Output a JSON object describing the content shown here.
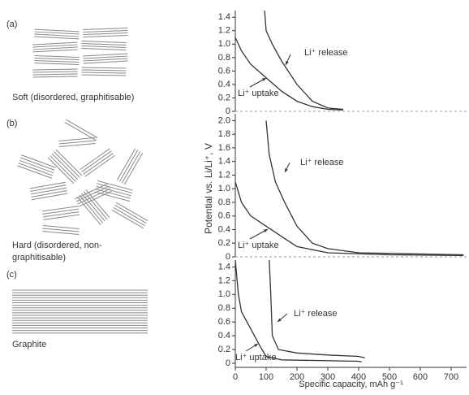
{
  "schematics": {
    "a": {
      "tag": "(a)",
      "caption": "Soft (disordered, graphitisable)"
    },
    "b": {
      "tag": "(b)",
      "caption_lines": [
        "Hard (disordered, non-",
        "graphitisable)"
      ]
    },
    "c": {
      "tag": "(c)",
      "caption": "Graphite"
    }
  },
  "chart_data": [
    {
      "type": "line",
      "xlim": [
        0,
        750
      ],
      "ylim": [
        0,
        1.5
      ],
      "yticks": [
        0,
        0.2,
        0.4,
        0.6,
        0.8,
        {
          "value": 1,
          "label": "1.0"
        },
        1.2,
        1.4
      ],
      "baseline_dashed": true,
      "series": [
        {
          "name": "Li⁺ uptake",
          "color": "#333333",
          "x": [
            0,
            20,
            50,
            100,
            150,
            200,
            250,
            300,
            350
          ],
          "values": [
            1.1,
            0.9,
            0.7,
            0.5,
            0.3,
            0.15,
            0.07,
            0.03,
            0.02
          ]
        },
        {
          "name": "Li⁺ release",
          "color": "#333333",
          "x": [
            95,
            100,
            120,
            150,
            200,
            250,
            300,
            350
          ],
          "values": [
            1.5,
            1.2,
            1.0,
            0.75,
            0.4,
            0.15,
            0.05,
            0.03
          ]
        }
      ]
    },
    {
      "type": "line",
      "xlim": [
        0,
        750
      ],
      "ylim": [
        0,
        2.1
      ],
      "ylabel": "Potential vs. Li/Li⁺, V",
      "yticks": [
        0,
        0.2,
        0.4,
        0.6,
        0.8,
        {
          "value": 1,
          "label": "1.0"
        },
        1.2,
        1.4,
        1.6,
        1.8,
        {
          "value": 2,
          "label": "2.0"
        }
      ],
      "baseline_dashed": true,
      "series": [
        {
          "name": "Li⁺ uptake",
          "color": "#333333",
          "x": [
            0,
            20,
            50,
            100,
            150,
            200,
            300,
            500,
            740
          ],
          "values": [
            1.1,
            0.8,
            0.6,
            0.45,
            0.3,
            0.15,
            0.06,
            0.03,
            0.02
          ]
        },
        {
          "name": "Li⁺ release",
          "color": "#333333",
          "x": [
            100,
            110,
            130,
            160,
            200,
            250,
            300,
            400,
            740
          ],
          "values": [
            2.0,
            1.5,
            1.1,
            0.8,
            0.45,
            0.2,
            0.12,
            0.06,
            0.03
          ]
        }
      ]
    },
    {
      "type": "line",
      "xlim": [
        0,
        750
      ],
      "ylim": [
        0,
        1.5
      ],
      "xlabel": "Specific capacity, mAh g⁻¹",
      "xticks": [
        0,
        100,
        200,
        300,
        400,
        500,
        600,
        700
      ],
      "yticks": [
        0,
        0.2,
        0.4,
        0.6,
        0.8,
        {
          "value": 1,
          "label": "1.0"
        },
        1.2,
        1.4
      ],
      "baseline_dashed": false,
      "series": [
        {
          "name": "Li⁺ uptake",
          "color": "#333333",
          "x": [
            0,
            10,
            20,
            50,
            80,
            100,
            150,
            400,
            410
          ],
          "values": [
            1.5,
            1.0,
            0.75,
            0.5,
            0.25,
            0.1,
            0.05,
            0.03,
            0.02
          ]
        },
        {
          "name": "Li⁺ release",
          "color": "#333333",
          "x": [
            110,
            115,
            120,
            140,
            200,
            300,
            400,
            420
          ],
          "values": [
            1.5,
            1.0,
            0.4,
            0.2,
            0.15,
            0.12,
            0.1,
            0.08
          ]
        }
      ]
    }
  ]
}
